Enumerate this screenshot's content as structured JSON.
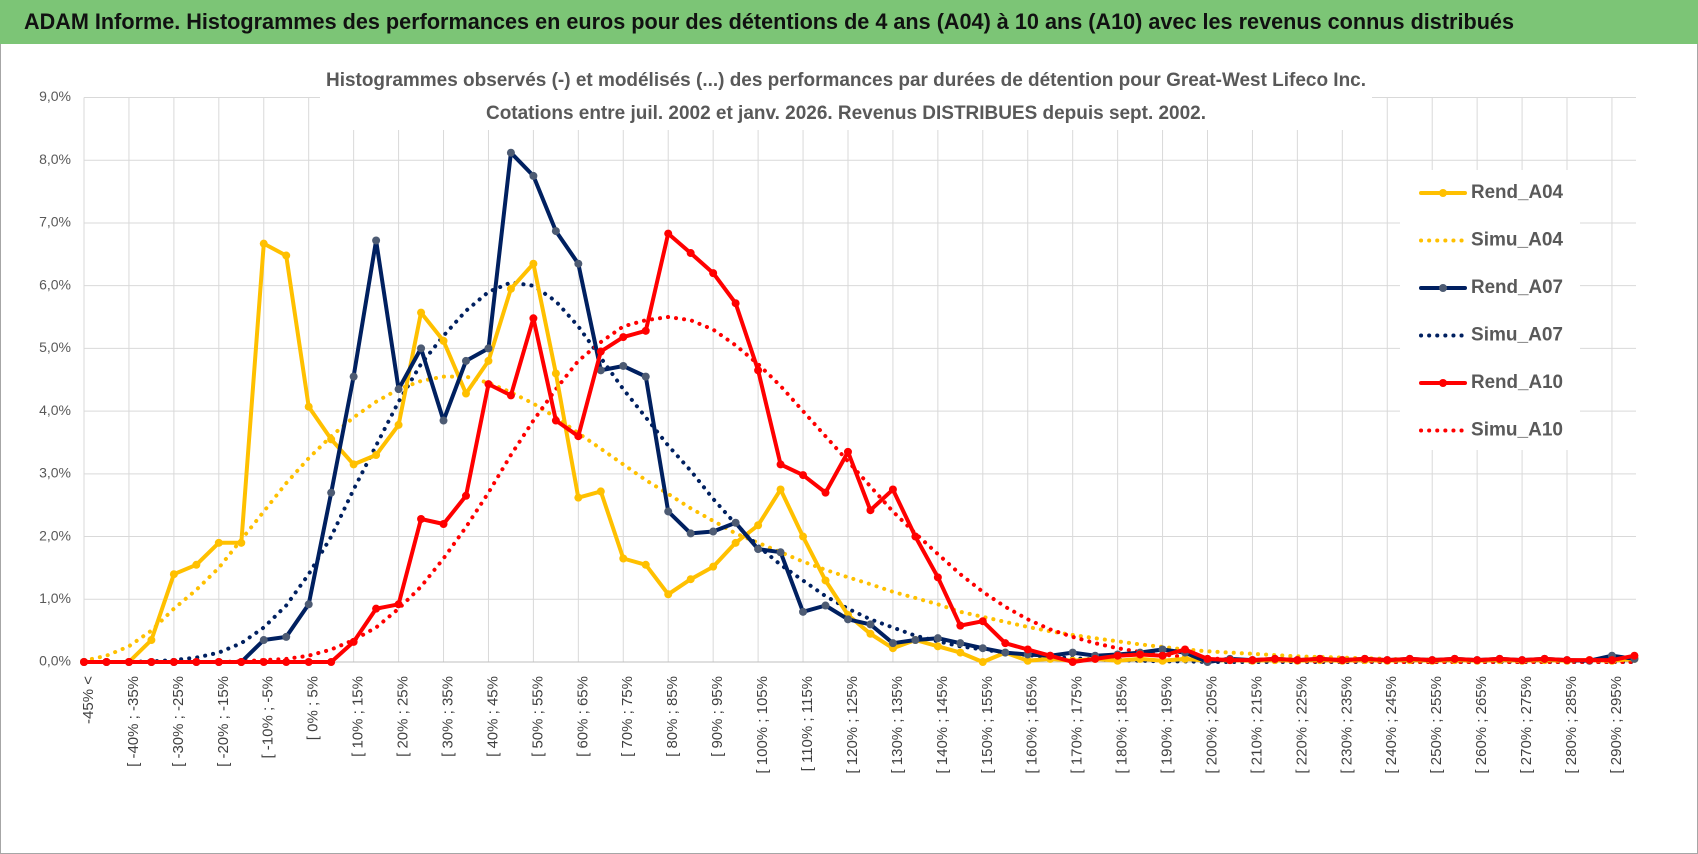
{
  "header": {
    "title": "ADAM Informe. Histogrammes des performances en euros pour des détentions de 4 ans (A04) à 10 ans (A10) avec les revenus connus distribués"
  },
  "chart_data": {
    "type": "line",
    "title": "Histogrammes observés (-) et modélisés (...) des performances par durées de détention pour Great-West Lifeco Inc.",
    "subtitle": "Cotations entre juil. 2002 et janv. 2026. Revenus DISTRIBUES depuis sept. 2002.",
    "categories": [
      "-45% <",
      null,
      "[ -40% ; -35%",
      null,
      "[ -30% ; -25%",
      null,
      "[ -20% ; -15%",
      null,
      "[ -10% ; -5%",
      null,
      "[ 0% ; 5%",
      null,
      "[ 10% ; 15%",
      null,
      "[ 20% ; 25%",
      null,
      "[ 30% ; 35%",
      null,
      "[ 40% ; 45%",
      null,
      "[ 50% ; 55%",
      null,
      "[ 60% ; 65%",
      null,
      "[ 70% ; 75%",
      null,
      "[ 80% ; 85%",
      null,
      "[ 90% ; 95%",
      null,
      "[ 100% ; 105%",
      null,
      "[ 110% ; 115%",
      null,
      "[ 120% ; 125%",
      null,
      "[ 130% ; 135%",
      null,
      "[ 140% ; 145%",
      null,
      "[ 150% ; 155%",
      null,
      "[ 160% ; 165%",
      null,
      "[ 170% ; 175%",
      null,
      "[ 180% ; 185%",
      null,
      "[ 190% ; 195%",
      null,
      "[ 200% ; 205%",
      null,
      "[ 210% ; 215%",
      null,
      "[ 220% ; 225%",
      null,
      "[ 230% ; 235%",
      null,
      "[ 240% ; 245%",
      null,
      "[ 250% ; 255%",
      null,
      "[ 260% ; 265%",
      null,
      "[ 270% ; 275%",
      null,
      "[ 280% ; 285%",
      null,
      "[ 290% ; 295%",
      null
    ],
    "series": [
      {
        "name": "Rend_A04",
        "color": "#ffc000",
        "line_style": "solid",
        "markers": true,
        "marker_color": "#ffc000",
        "values": [
          0,
          0,
          0,
          0.35,
          1.4,
          1.55,
          1.9,
          1.9,
          6.67,
          6.48,
          4.07,
          3.55,
          3.15,
          3.3,
          3.78,
          5.57,
          5.12,
          4.28,
          4.8,
          5.95,
          6.35,
          4.6,
          2.62,
          2.72,
          1.65,
          1.55,
          1.08,
          1.32,
          1.52,
          1.9,
          2.18,
          2.75,
          2.0,
          1.3,
          0.75,
          0.45,
          0.22,
          0.35,
          0.25,
          0.15,
          0,
          0.15,
          0.02,
          0.05,
          0.02,
          0.05,
          0.02,
          0.05,
          0.02,
          0.05,
          0.02,
          0.03,
          0.02,
          0.03,
          0.02,
          0.03,
          0.02,
          0.03,
          0.02,
          0.03,
          0.02,
          0.03,
          0.02,
          0.03,
          0.02,
          0.03,
          0.02,
          0.03,
          0.02,
          0.05
        ]
      },
      {
        "name": "Simu_A04",
        "color": "#ffc000",
        "line_style": "dotted",
        "markers": false,
        "values": [
          0.02,
          0.1,
          0.25,
          0.5,
          0.85,
          1.15,
          1.5,
          1.95,
          2.4,
          2.85,
          3.25,
          3.6,
          3.9,
          4.15,
          4.35,
          4.48,
          4.55,
          4.55,
          4.45,
          4.3,
          4.12,
          3.9,
          3.65,
          3.4,
          3.15,
          2.9,
          2.68,
          2.45,
          2.25,
          2.05,
          1.9,
          1.75,
          1.6,
          1.47,
          1.35,
          1.24,
          1.12,
          1.02,
          0.92,
          0.8,
          0.72,
          0.64,
          0.56,
          0.49,
          0.43,
          0.38,
          0.33,
          0.28,
          0.24,
          0.2,
          0.17,
          0.15,
          0.13,
          0.11,
          0.09,
          0.08,
          0.07,
          0.06,
          0.05,
          0.04,
          0.04,
          0.03,
          0.03,
          0.03,
          0.02,
          0.02,
          0.02,
          0.02,
          0.01,
          0.01
        ]
      },
      {
        "name": "Rend_A07",
        "color": "#002060",
        "line_style": "solid",
        "markers": true,
        "marker_color": "#4d5b73",
        "values": [
          0,
          0,
          0,
          0,
          0,
          0,
          0,
          0,
          0.35,
          0.4,
          0.92,
          2.7,
          4.55,
          6.72,
          4.35,
          5.0,
          3.85,
          4.8,
          5.0,
          8.12,
          7.75,
          6.87,
          6.35,
          4.65,
          4.72,
          4.55,
          2.4,
          2.05,
          2.08,
          2.22,
          1.8,
          1.75,
          0.8,
          0.9,
          0.68,
          0.6,
          0.3,
          0.35,
          0.38,
          0.3,
          0.22,
          0.15,
          0.12,
          0.1,
          0.15,
          0.1,
          0.12,
          0.15,
          0.2,
          0.15,
          0,
          0.05,
          0.03,
          0.05,
          0.03,
          0.05,
          0.03,
          0.05,
          0.03,
          0.05,
          0.03,
          0.05,
          0.03,
          0.05,
          0.03,
          0.05,
          0.03,
          0.02,
          0.1,
          0.05
        ]
      },
      {
        "name": "Simu_A07",
        "color": "#002060",
        "line_style": "dotted",
        "markers": false,
        "values": [
          0,
          0,
          0,
          0.01,
          0.03,
          0.07,
          0.15,
          0.3,
          0.55,
          0.9,
          1.4,
          2.0,
          2.75,
          3.45,
          4.15,
          4.75,
          5.2,
          5.6,
          5.9,
          6.05,
          6.0,
          5.75,
          5.35,
          4.85,
          4.35,
          3.9,
          3.45,
          3.05,
          2.6,
          2.2,
          1.85,
          1.55,
          1.3,
          1.05,
          0.85,
          0.68,
          0.55,
          0.42,
          0.33,
          0.25,
          0.2,
          0.15,
          0.11,
          0.08,
          0.06,
          0.04,
          0.03,
          0.02,
          0.01,
          0.01,
          0,
          0,
          0,
          0,
          0,
          0,
          0,
          0,
          0,
          0,
          0,
          0,
          0,
          0,
          0,
          0,
          0,
          0,
          0,
          0
        ]
      },
      {
        "name": "Rend_A10",
        "color": "#ff0000",
        "line_style": "solid",
        "markers": true,
        "marker_color": "#ff0000",
        "values": [
          0,
          0,
          0,
          0,
          0,
          0,
          0,
          0,
          0,
          0,
          0,
          0,
          0.32,
          0.85,
          0.92,
          2.28,
          2.2,
          2.65,
          4.43,
          4.25,
          5.48,
          3.85,
          3.6,
          4.95,
          5.18,
          5.28,
          6.83,
          6.52,
          6.2,
          5.72,
          4.65,
          3.15,
          2.98,
          2.7,
          3.35,
          2.42,
          2.75,
          2.0,
          1.35,
          0.58,
          0.65,
          0.3,
          0.2,
          0.1,
          0,
          0.05,
          0.1,
          0.12,
          0.1,
          0.2,
          0.05,
          0.03,
          0.03,
          0.05,
          0.03,
          0.05,
          0.03,
          0.05,
          0.03,
          0.05,
          0.03,
          0.05,
          0.03,
          0.05,
          0.03,
          0.05,
          0.03,
          0.03,
          0.03,
          0.1
        ]
      },
      {
        "name": "Simu_A10",
        "color": "#ff0000",
        "line_style": "dotted",
        "markers": false,
        "values": [
          0,
          0,
          0,
          0,
          0,
          0,
          0,
          0.01,
          0.03,
          0.05,
          0.1,
          0.2,
          0.35,
          0.55,
          0.85,
          1.2,
          1.65,
          2.15,
          2.7,
          3.3,
          3.85,
          4.35,
          4.8,
          5.1,
          5.35,
          5.45,
          5.5,
          5.45,
          5.3,
          5.05,
          4.75,
          4.4,
          4.0,
          3.6,
          3.2,
          2.8,
          2.4,
          2.05,
          1.72,
          1.4,
          1.12,
          0.88,
          0.68,
          0.52,
          0.4,
          0.3,
          0.22,
          0.16,
          0.12,
          0.08,
          0.06,
          0.04,
          0.03,
          0.02,
          0.01,
          0.01,
          0.01,
          0.01,
          0,
          0,
          0,
          0,
          0,
          0,
          0,
          0,
          0,
          0,
          0,
          0
        ]
      }
    ],
    "ylim": [
      0,
      9
    ],
    "yticks": [
      {
        "value": 0,
        "label": "0,0%"
      },
      {
        "value": 1,
        "label": "1,0%"
      },
      {
        "value": 2,
        "label": "2,0%"
      },
      {
        "value": 3,
        "label": "3,0%"
      },
      {
        "value": 4,
        "label": "4,0%"
      },
      {
        "value": 5,
        "label": "5,0%"
      },
      {
        "value": 6,
        "label": "6,0%"
      },
      {
        "value": 7,
        "label": "7,0%"
      },
      {
        "value": 8,
        "label": "8,0%"
      },
      {
        "value": 9,
        "label": "9,0%"
      }
    ],
    "grid": true,
    "legend": "right"
  }
}
